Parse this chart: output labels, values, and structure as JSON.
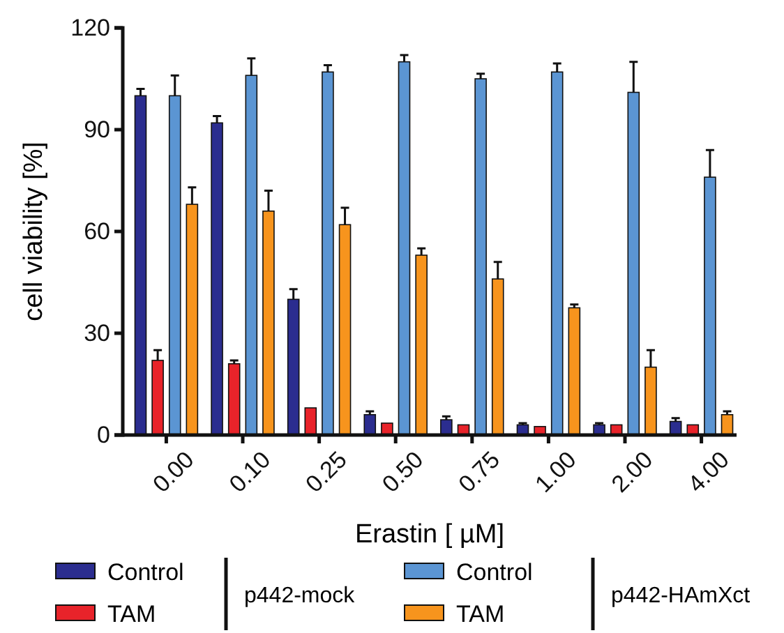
{
  "chart_data": {
    "type": "bar",
    "xlabel": "Erastin [ µM]",
    "ylabel": "cell viability [%]",
    "categories": [
      "0.00",
      "0.10",
      "0.25",
      "0.50",
      "0.75",
      "1.00",
      "2.00",
      "4.00"
    ],
    "ylim": [
      0,
      120
    ],
    "yticks": [
      0,
      30,
      60,
      90,
      120
    ],
    "grid": false,
    "legend": "bottom",
    "annotations": [
      "p442-mock",
      "p442-HAmXct"
    ],
    "series": [
      {
        "name": "Control",
        "color": "#2b2d8f",
        "values": [
          100,
          92,
          40,
          6,
          4.5,
          3,
          3,
          4
        ],
        "errors": [
          [
            100,
            102
          ],
          [
            92,
            94
          ],
          [
            40,
            43
          ],
          [
            6,
            7
          ],
          [
            4.5,
            5.5
          ],
          [
            3,
            3.5
          ],
          [
            3,
            3.5
          ],
          [
            4,
            5
          ]
        ]
      },
      {
        "name": "TAM",
        "color": "#e8232a",
        "values": [
          22,
          21,
          8,
          3.5,
          3,
          2.5,
          3,
          3
        ],
        "errors": [
          [
            22,
            25
          ],
          [
            21,
            22
          ],
          null,
          null,
          null,
          null,
          null,
          null
        ]
      },
      {
        "name": "Control",
        "color": "#5b95d3",
        "values": [
          100,
          106,
          107,
          110,
          105,
          107,
          101,
          76
        ],
        "errors": [
          [
            100,
            106
          ],
          [
            106,
            111
          ],
          [
            107,
            109
          ],
          [
            110,
            112
          ],
          [
            105,
            106.5
          ],
          [
            107,
            109.5
          ],
          [
            101,
            110
          ],
          [
            76,
            84
          ]
        ]
      },
      {
        "name": "TAM",
        "color": "#f7941d",
        "values": [
          68,
          66,
          62,
          53,
          46,
          37.5,
          20,
          6
        ],
        "errors": [
          [
            68,
            73
          ],
          [
            66,
            72
          ],
          [
            62,
            67
          ],
          [
            53,
            55
          ],
          [
            46,
            51
          ],
          [
            37.5,
            38.5
          ],
          [
            20,
            25
          ],
          [
            6,
            7
          ]
        ]
      }
    ]
  }
}
